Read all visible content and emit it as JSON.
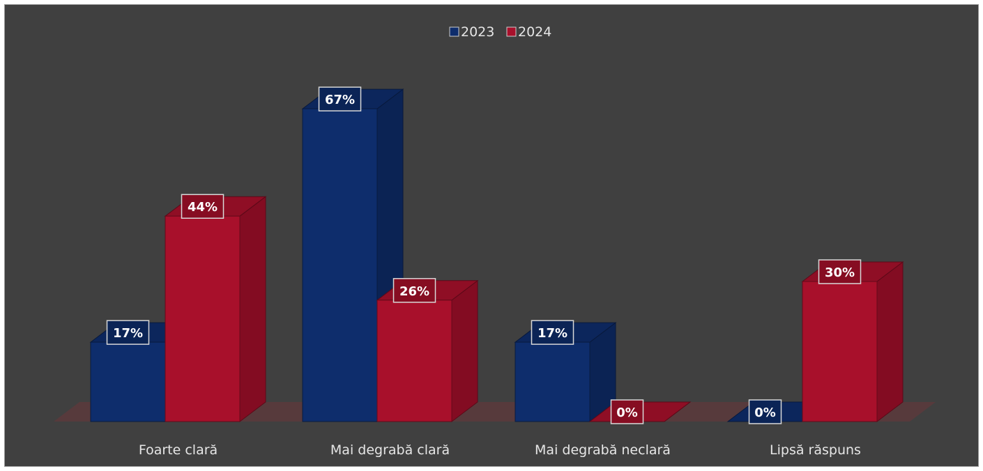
{
  "chart_data": {
    "type": "bar",
    "categories": [
      "Foarte clară",
      "Mai degrabă clară",
      "Mai degrabă neclară",
      "Lipsă răspuns"
    ],
    "series": [
      {
        "name": "2023",
        "values": [
          17,
          67,
          17,
          0
        ],
        "color": "#0e2d6c"
      },
      {
        "name": "2024",
        "values": [
          44,
          26,
          0,
          30
        ],
        "color": "#a8102b"
      }
    ],
    "value_suffix": "%",
    "ylim": [
      0,
      70
    ],
    "legend_position": "top",
    "grid": false,
    "style": "3d-clustered-column"
  }
}
